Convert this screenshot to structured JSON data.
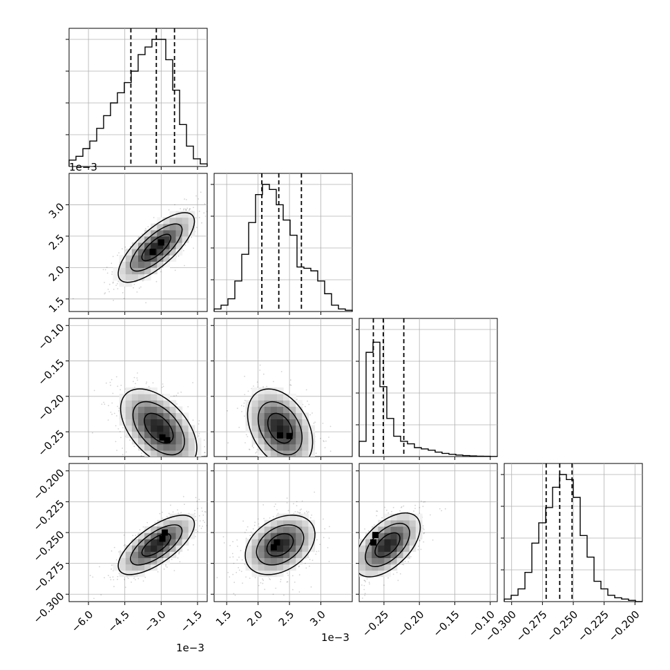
{
  "chart_data": {
    "type": "corner",
    "grid": true,
    "quantile_lines": "dashed",
    "contours": "black",
    "density": "grayscale",
    "params": [
      {
        "scale_label": "1e−3",
        "range": [
          -6.8,
          -1.1
        ],
        "ticks": [
          -6.0,
          -4.5,
          -3.0,
          -1.5
        ],
        "tick_labels": [
          "−6.0",
          "−4.5",
          "−3.0",
          "−1.5"
        ],
        "quantiles": [
          -4.25,
          -3.2,
          -2.45
        ],
        "hist": [
          0.05,
          0.08,
          0.14,
          0.2,
          0.3,
          0.4,
          0.5,
          0.58,
          0.66,
          0.75,
          0.88,
          0.94,
          1.0,
          1.0,
          0.84,
          0.6,
          0.33,
          0.16,
          0.06,
          0.02
        ]
      },
      {
        "scale_label": "1e−3",
        "range": [
          1.3,
          3.5
        ],
        "ticks": [
          1.5,
          2.0,
          2.5,
          3.0
        ],
        "tick_labels": [
          "1.5",
          "2.0",
          "2.5",
          "3.0"
        ],
        "quantiles": [
          2.06,
          2.33,
          2.69
        ],
        "hist": [
          0.02,
          0.05,
          0.1,
          0.24,
          0.45,
          0.7,
          0.92,
          1.0,
          0.96,
          0.84,
          0.72,
          0.6,
          0.35,
          0.34,
          0.32,
          0.24,
          0.14,
          0.05,
          0.02,
          0.01
        ]
      },
      {
        "scale_label": "",
        "range": [
          -0.285,
          -0.09
        ],
        "ticks": [
          -0.25,
          -0.2,
          -0.15,
          -0.1
        ],
        "tick_labels": [
          "−0.25",
          "−0.20",
          "−0.15",
          "−0.10"
        ],
        "quantiles": [
          -0.265,
          -0.251,
          -0.222
        ],
        "hist": [
          0.12,
          0.82,
          0.9,
          0.55,
          0.3,
          0.16,
          0.12,
          0.1,
          0.07,
          0.06,
          0.05,
          0.035,
          0.025,
          0.018,
          0.012,
          0.008,
          0.005,
          0.003,
          0.002,
          0.001
        ]
      },
      {
        "scale_label": "",
        "range": [
          -0.306,
          -0.194
        ],
        "ticks": [
          -0.3,
          -0.275,
          -0.25,
          -0.225,
          -0.2
        ],
        "tick_labels": [
          "−0.300",
          "−0.275",
          "−0.250",
          "−0.225",
          "−0.200"
        ],
        "quantiles": [
          -0.272,
          -0.261,
          -0.251
        ],
        "hist": [
          0.02,
          0.05,
          0.1,
          0.23,
          0.46,
          0.62,
          0.74,
          0.9,
          1.0,
          0.96,
          0.82,
          0.52,
          0.35,
          0.16,
          0.1,
          0.05,
          0.03,
          0.02,
          0.01,
          0.0
        ]
      }
    ],
    "pairs": [
      {
        "row": 1,
        "col": 0,
        "mean": [
          -3.2,
          2.32
        ],
        "sd": [
          0.85,
          0.3
        ],
        "corr": 0.75,
        "peaks": [
          [
            -3.0,
            2.4
          ],
          [
            -3.35,
            2.25
          ]
        ]
      },
      {
        "row": 2,
        "col": 0,
        "mean": [
          -3.1,
          -0.245
        ],
        "sd": [
          0.85,
          0.03
        ],
        "corr": -0.5,
        "peaks": [
          [
            -2.95,
            -0.258
          ],
          [
            -2.75,
            -0.262
          ]
        ]
      },
      {
        "row": 2,
        "col": 1,
        "mean": [
          2.35,
          -0.245
        ],
        "sd": [
          0.28,
          0.03
        ],
        "corr": -0.35,
        "peaks": [
          [
            2.35,
            -0.255
          ],
          [
            2.5,
            -0.256
          ]
        ]
      },
      {
        "row": 3,
        "col": 0,
        "mean": [
          -3.2,
          -0.26
        ],
        "sd": [
          0.85,
          0.013
        ],
        "corr": 0.7,
        "peaks": [
          [
            -2.95,
            -0.255
          ],
          [
            -2.85,
            -0.25
          ]
        ]
      },
      {
        "row": 3,
        "col": 1,
        "mean": [
          2.35,
          -0.26
        ],
        "sd": [
          0.3,
          0.013
        ],
        "corr": 0.35,
        "peaks": [
          [
            2.25,
            -0.262
          ],
          [
            2.3,
            -0.258
          ]
        ]
      },
      {
        "row": 3,
        "col": 2,
        "mean": [
          -0.245,
          -0.26
        ],
        "sd": [
          0.025,
          0.014
        ],
        "corr": 0.55,
        "peaks": [
          [
            -0.262,
            -0.252
          ],
          [
            -0.265,
            -0.258
          ]
        ]
      }
    ]
  }
}
